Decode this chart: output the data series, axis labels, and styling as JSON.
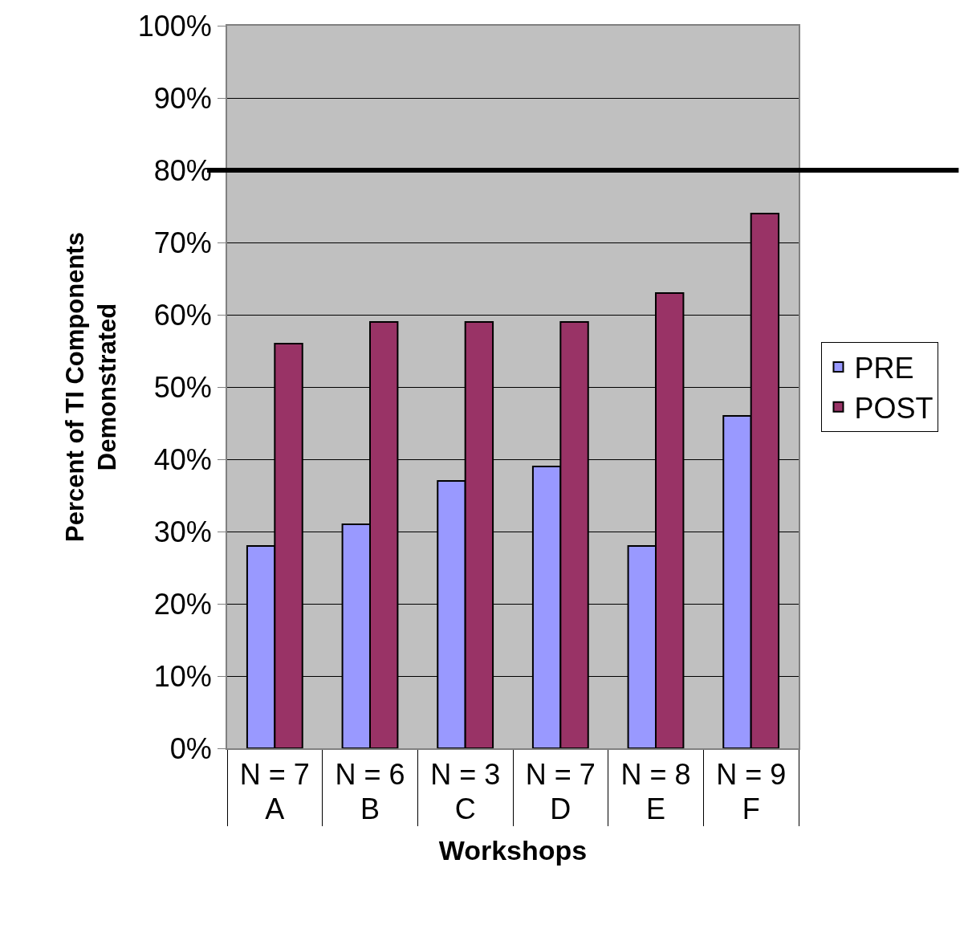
{
  "chart_data": {
    "type": "bar",
    "xlabel": "Workshops",
    "ylabel": "Percent of TI Components\nDemonstrated",
    "categories": [
      "N = 7\nA",
      "N = 6\nB",
      "N = 3\nC",
      "N = 7\nD",
      "N = 8\nE",
      "N = 9\nF"
    ],
    "series": [
      {
        "name": "PRE",
        "color": "#9999ff",
        "values": [
          28,
          31,
          37,
          39,
          28,
          46
        ]
      },
      {
        "name": "POST",
        "color": "#993366",
        "values": [
          56,
          59,
          59,
          59,
          63,
          74
        ]
      }
    ],
    "ylim": [
      0,
      100
    ],
    "yticks": [
      {
        "value": 0,
        "label": "0%"
      },
      {
        "value": 10,
        "label": "10%"
      },
      {
        "value": 20,
        "label": "20%"
      },
      {
        "value": 30,
        "label": "30%"
      },
      {
        "value": 40,
        "label": "40%"
      },
      {
        "value": 50,
        "label": "50%"
      },
      {
        "value": 60,
        "label": "60%"
      },
      {
        "value": 70,
        "label": "70%"
      },
      {
        "value": 80,
        "label": "80%"
      },
      {
        "value": 90,
        "label": "90%"
      },
      {
        "value": 100,
        "label": "100%"
      }
    ],
    "ref_lines": [
      {
        "axis": "y",
        "value": 80,
        "color": "#000000"
      }
    ],
    "grid": "y",
    "legend": "right"
  }
}
